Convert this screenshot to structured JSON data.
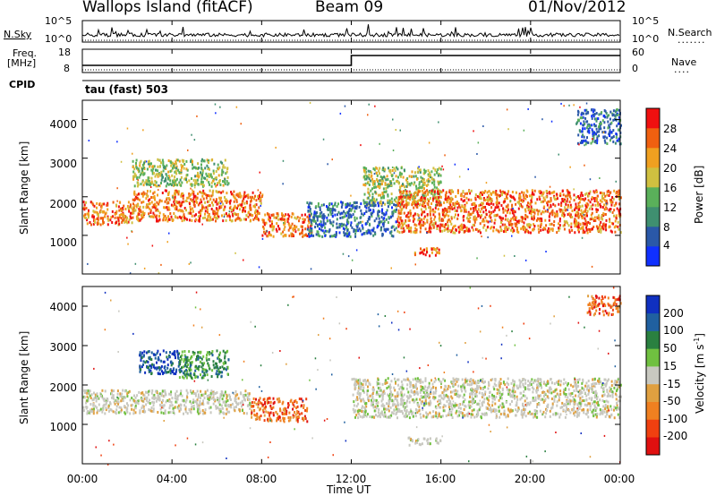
{
  "header": {
    "station": "Wallops Island (fitACF)",
    "beam": "Beam 09",
    "date": "01/Nov/2012"
  },
  "panels_top": {
    "nsky_label": "N.Sky",
    "nsky_ticks": [
      "10^5",
      "10^0"
    ],
    "nsearch_label": "N.Search",
    "nsearch_ticks": [
      "10^5",
      "10^0"
    ],
    "freq_label_line1": "Freq.",
    "freq_label_line2": "[MHz]",
    "freq_ticks": [
      "18",
      "8"
    ],
    "nave_label": "Nave",
    "nave_ticks": [
      "60",
      "0"
    ],
    "cpid_label": "CPID",
    "cpid_value": "tau (fast) 503"
  },
  "chart_data": [
    {
      "type": "heatmap",
      "name": "power",
      "ylabel": "Slant Range [km]",
      "yticks": [
        "1000",
        "2000",
        "3000",
        "4000"
      ],
      "ylim": [
        0,
        4500
      ],
      "xlim": [
        0,
        24
      ],
      "colorbar_label": "Power [dB]",
      "colorbar_ticks": [
        "4",
        "8",
        "12",
        "16",
        "20",
        "24",
        "28"
      ],
      "colorbar_colors": [
        "#1030ff",
        "#2a58a8",
        "#3f8f70",
        "#5ab05a",
        "#d0c040",
        "#f0a020",
        "#f06010",
        "#f01010"
      ],
      "regions": [
        {
          "x": [
            0,
            2.2
          ],
          "y": [
            1300,
            1900
          ],
          "level": "high"
        },
        {
          "x": [
            2.2,
            8
          ],
          "y": [
            1400,
            2200
          ],
          "level": "high"
        },
        {
          "x": [
            8,
            10.2
          ],
          "y": [
            1000,
            1600
          ],
          "level": "high"
        },
        {
          "x": [
            2.2,
            6.5
          ],
          "y": [
            2300,
            3000
          ],
          "level": "medium"
        },
        {
          "x": [
            12.5,
            16
          ],
          "y": [
            1800,
            2800
          ],
          "level": "medium"
        },
        {
          "x": [
            14,
            24
          ],
          "y": [
            1100,
            2200
          ],
          "level": "high"
        },
        {
          "x": [
            10,
            14
          ],
          "y": [
            1000,
            1900
          ],
          "level": "low"
        },
        {
          "x": [
            14.8,
            16
          ],
          "y": [
            500,
            700
          ],
          "level": "high"
        },
        {
          "x": [
            22,
            24
          ],
          "y": [
            3400,
            4300
          ],
          "level": "low"
        }
      ]
    },
    {
      "type": "heatmap",
      "name": "velocity",
      "ylabel": "Slant Range [km]",
      "yticks": [
        "1000",
        "2000",
        "3000",
        "4000"
      ],
      "ylim": [
        0,
        4500
      ],
      "xlim": [
        0,
        24
      ],
      "colorbar_label": "Velocity [m s^-1]",
      "colorbar_ticks": [
        "200",
        "100",
        "50",
        "15",
        "-15",
        "-50",
        "-100",
        "-200"
      ],
      "colorbar_colors": [
        "#1030c0",
        "#2060a0",
        "#2a8040",
        "#70c040",
        "#c8c8c0",
        "#e0a040",
        "#f08020",
        "#f04010",
        "#e01010"
      ],
      "xticks": [
        "00:00",
        "04:00",
        "08:00",
        "12:00",
        "16:00",
        "20:00",
        "00:00"
      ],
      "xlabel": "Time UT",
      "regions": [
        {
          "x": [
            0,
            7.5
          ],
          "y": [
            1300,
            1900
          ],
          "level": "grey"
        },
        {
          "x": [
            2.5,
            4.3
          ],
          "y": [
            2300,
            2900
          ],
          "level": "blue"
        },
        {
          "x": [
            4.3,
            6.5
          ],
          "y": [
            2200,
            2900
          ],
          "level": "green"
        },
        {
          "x": [
            7.5,
            10
          ],
          "y": [
            1100,
            1700
          ],
          "level": "orange"
        },
        {
          "x": [
            12,
            24
          ],
          "y": [
            1200,
            2200
          ],
          "level": "grey"
        },
        {
          "x": [
            14.5,
            16
          ],
          "y": [
            500,
            700
          ],
          "level": "grey"
        },
        {
          "x": [
            22.5,
            24
          ],
          "y": [
            3800,
            4300
          ],
          "level": "orange"
        }
      ]
    }
  ]
}
